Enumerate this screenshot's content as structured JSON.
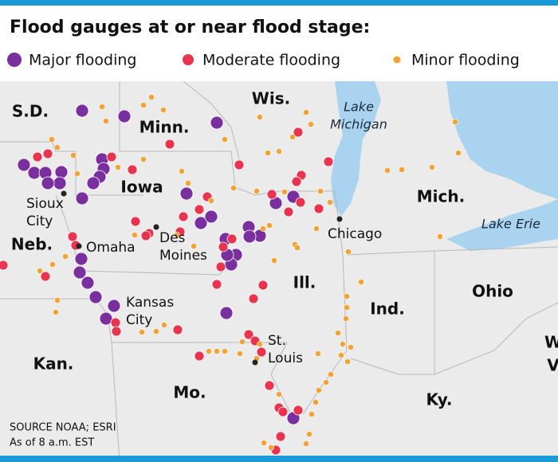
{
  "title": "Flood gauges at or near flood stage:",
  "legend": [
    {
      "label": "Major flooding",
      "color": "#7a2f9e"
    },
    {
      "label": "Moderate flooding",
      "color": "#e8344e"
    },
    {
      "label": "Minor flooding",
      "color": "#f4a233"
    }
  ],
  "states": [
    "S.D.",
    "Minn.",
    "Wis.",
    "Iowa",
    "Neb.",
    "Ill.",
    "Mich.",
    "Ind.",
    "Ohio",
    "Kan.",
    "Mo.",
    "Ky.",
    "W",
    "V"
  ],
  "cities": [
    {
      "lines": [
        "Sioux",
        "City"
      ]
    },
    {
      "lines": [
        "Omaha"
      ]
    },
    {
      "lines": [
        "Des",
        "Moines"
      ]
    },
    {
      "lines": [
        "Kansas",
        "City"
      ]
    },
    {
      "lines": [
        "Chicago"
      ]
    },
    {
      "lines": [
        "St.",
        "Louis"
      ]
    }
  ],
  "lakes": [
    {
      "lines": [
        "Lake",
        "Michigan"
      ]
    },
    {
      "lines": [
        "Lake Erie"
      ]
    }
  ],
  "source": [
    "SOURCE NOAA; ESRI",
    "As of 8 a.m. EST"
  ]
}
